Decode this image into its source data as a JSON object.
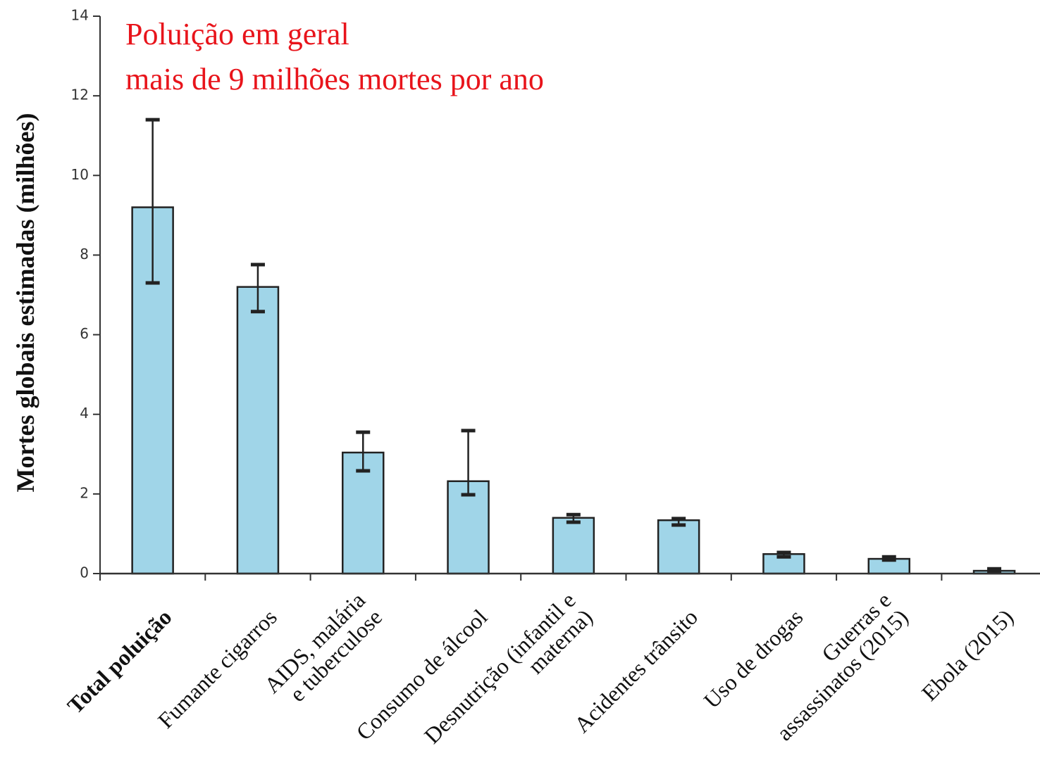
{
  "chart_data": {
    "type": "bar",
    "title_lines": [
      "Poluição em geral",
      "mais de 9 milhões mortes por ano"
    ],
    "title_color": "#e8141b",
    "y_label": "Mortes globais estimadas (milhões)",
    "categories": [
      "Total poluição",
      "Fumante cigarros",
      "AIDS, malária\ne tuberculose",
      "Consumo de álcool",
      "Desnutrição (infantil e\nmaterna)",
      "Acidentes trânsito",
      "Uso de drogas",
      "Guerras e\nassassinatos (2015)",
      "Ebola (2015)"
    ],
    "values": [
      9.2,
      7.2,
      3.04,
      2.32,
      1.4,
      1.34,
      0.49,
      0.37,
      0.07
    ],
    "error_low": [
      7.3,
      6.58,
      2.58,
      1.98,
      1.29,
      1.22,
      0.42,
      0.34,
      0.04
    ],
    "error_high": [
      11.4,
      7.76,
      3.55,
      3.59,
      1.48,
      1.38,
      0.53,
      0.42,
      0.12
    ],
    "color": "#a0d5e8",
    "highlight": {
      "index": 0,
      "color": "#e8141b"
    },
    "ylim": [
      0,
      14
    ],
    "yticks": [
      0,
      2,
      4,
      6,
      8,
      10,
      12,
      14
    ]
  }
}
